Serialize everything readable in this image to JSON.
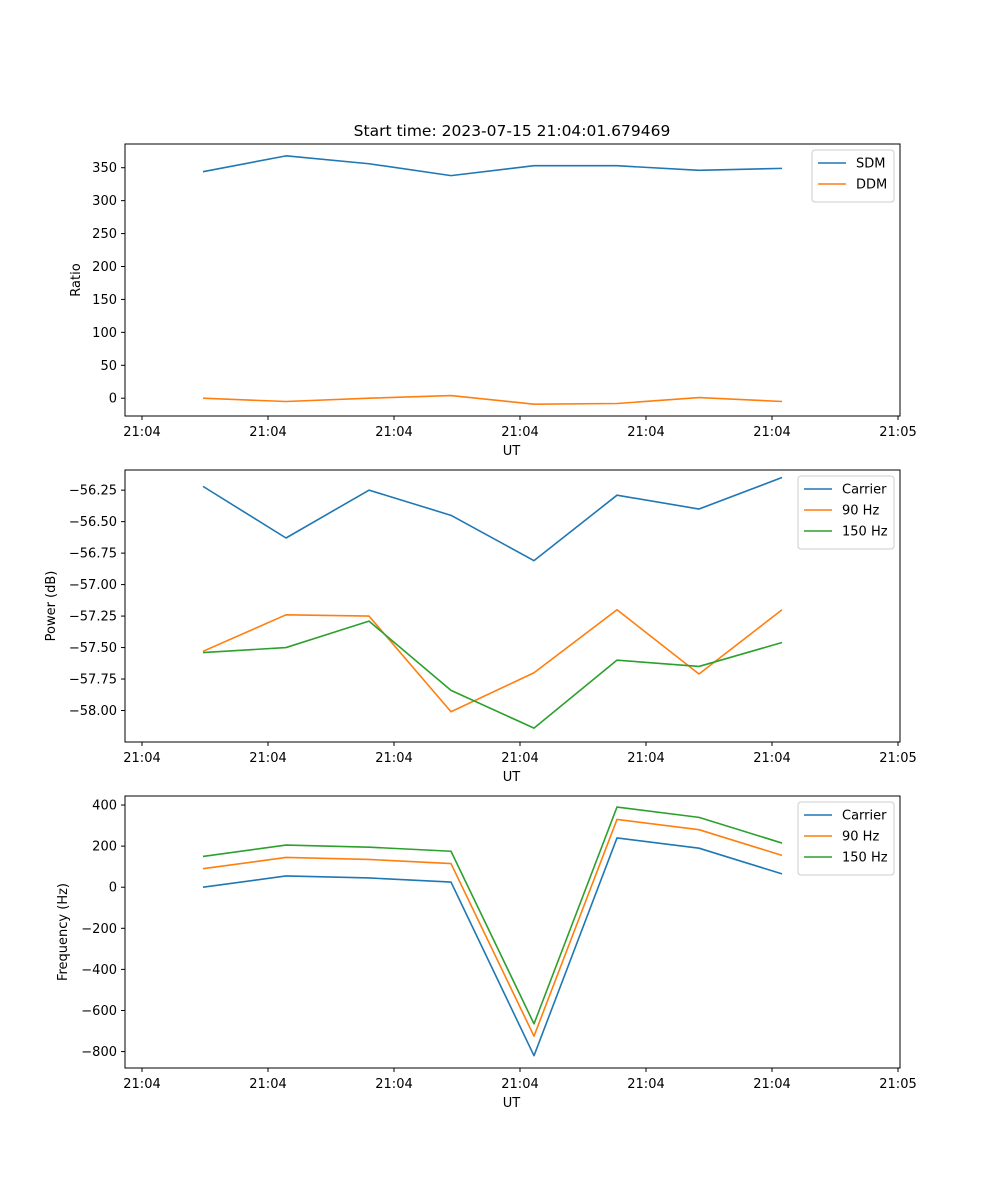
{
  "figure_title": "Start time: 2023-07-15 21:04:01.679469",
  "chart_data": [
    {
      "type": "line",
      "title": "Start time: 2023-07-15 21:04:01.679469",
      "xlabel": "UT",
      "ylabel": "Ratio",
      "x_index": [
        0,
        1,
        2,
        3,
        4,
        5,
        6,
        7
      ],
      "x_ticks": [
        "21:04",
        "21:04",
        "21:04",
        "21:04",
        "21:04",
        "21:04",
        "21:04",
        "21:05"
      ],
      "ylim": [
        -27,
        386
      ],
      "y_ticks": [
        0,
        50,
        100,
        150,
        200,
        250,
        300,
        350
      ],
      "legend_position": "top-right",
      "series": [
        {
          "name": "SDM",
          "color": "#1f77b4",
          "values": [
            344,
            368,
            356,
            338,
            353,
            353,
            346,
            349
          ]
        },
        {
          "name": "DDM",
          "color": "#ff7f0e",
          "values": [
            0,
            -5,
            0,
            4,
            -9,
            -8,
            1,
            -5
          ]
        }
      ]
    },
    {
      "type": "line",
      "title": "",
      "xlabel": "UT",
      "ylabel": "Power (dB)",
      "x_index": [
        0,
        1,
        2,
        3,
        4,
        5,
        6,
        7
      ],
      "x_ticks": [
        "21:04",
        "21:04",
        "21:04",
        "21:04",
        "21:04",
        "21:04",
        "21:04",
        "21:05"
      ],
      "ylim": [
        -58.25,
        -56.09
      ],
      "y_ticks": [
        -58.0,
        -57.75,
        -57.5,
        -57.25,
        -57.0,
        -56.75,
        -56.5,
        -56.25
      ],
      "y_tick_labels": [
        "−58.00",
        "−57.75",
        "−57.50",
        "−57.25",
        "−57.00",
        "−56.75",
        "−56.50",
        "−56.25"
      ],
      "legend_position": "top-right",
      "series": [
        {
          "name": "Carrier",
          "color": "#1f77b4",
          "values": [
            -56.22,
            -56.63,
            -56.25,
            -56.45,
            -56.81,
            -56.29,
            -56.4,
            -56.15
          ]
        },
        {
          "name": "90 Hz",
          "color": "#ff7f0e",
          "values": [
            -57.53,
            -57.24,
            -57.25,
            -58.01,
            -57.7,
            -57.2,
            -57.71,
            -57.2
          ]
        },
        {
          "name": "150 Hz",
          "color": "#2ca02c",
          "values": [
            -57.54,
            -57.5,
            -57.29,
            -57.84,
            -58.14,
            -57.6,
            -57.65,
            -57.46
          ]
        }
      ]
    },
    {
      "type": "line",
      "title": "",
      "xlabel": "UT",
      "ylabel": "Frequency (Hz)",
      "x_index": [
        0,
        1,
        2,
        3,
        4,
        5,
        6,
        7
      ],
      "x_ticks": [
        "21:04",
        "21:04",
        "21:04",
        "21:04",
        "21:04",
        "21:04",
        "21:04",
        "21:05"
      ],
      "ylim": [
        -880,
        444
      ],
      "y_ticks": [
        -800,
        -600,
        -400,
        -200,
        0,
        200,
        400
      ],
      "y_tick_labels": [
        "−800",
        "−600",
        "−400",
        "−200",
        "0",
        "200",
        "400"
      ],
      "legend_position": "top-right",
      "series": [
        {
          "name": "Carrier",
          "color": "#1f77b4",
          "values": [
            0,
            55,
            45,
            25,
            -820,
            240,
            190,
            65
          ]
        },
        {
          "name": "90 Hz",
          "color": "#ff7f0e",
          "values": [
            90,
            145,
            135,
            115,
            -725,
            330,
            280,
            155
          ]
        },
        {
          "name": "150 Hz",
          "color": "#2ca02c",
          "values": [
            150,
            205,
            195,
            175,
            -665,
            390,
            340,
            215
          ]
        }
      ]
    }
  ]
}
